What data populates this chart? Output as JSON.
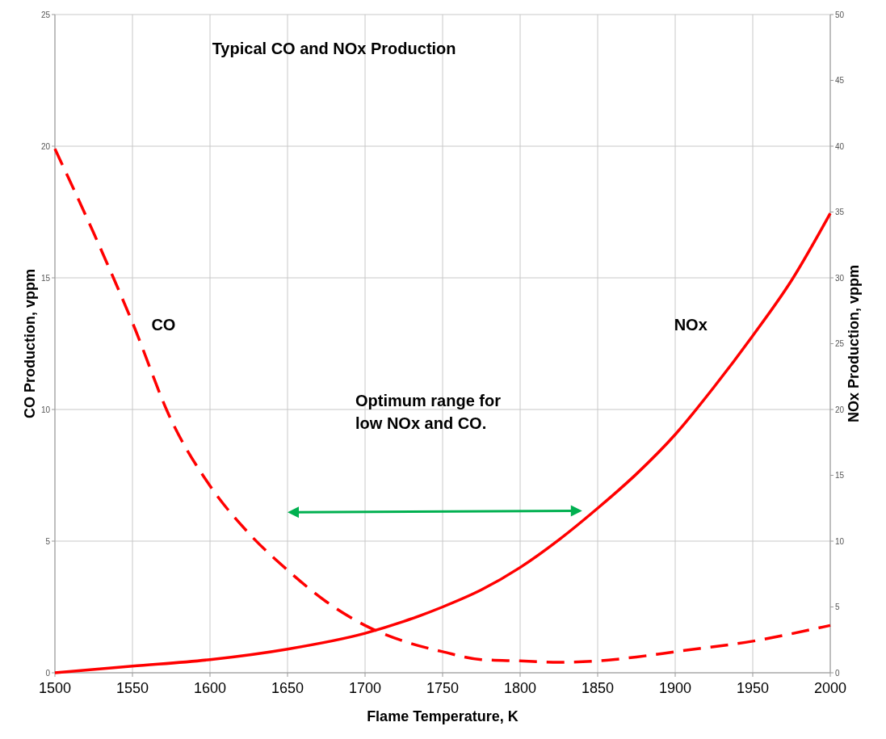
{
  "chart_data": {
    "type": "line",
    "title": "Typical CO and NOx Production",
    "xlabel": "Flame Temperature, K",
    "ylabel": "CO Production, vppm",
    "y2label": "NOx Production, vppm",
    "annotations": [
      "Optimum range for low NOx and CO."
    ],
    "xlim": [
      1500,
      2000
    ],
    "xticks": [
      1500,
      1550,
      1600,
      1650,
      1700,
      1750,
      1800,
      1850,
      1900,
      1950,
      2000
    ],
    "ylim": [
      0,
      25
    ],
    "yticks": [
      0,
      5,
      10,
      15,
      20,
      25
    ],
    "y2lim": [
      0,
      50
    ],
    "y2ticks": [
      0,
      5,
      10,
      15,
      20,
      25,
      30,
      35,
      40,
      45,
      50
    ],
    "grid": true,
    "legend": false,
    "series": [
      {
        "name": "CO",
        "color": "#ff0000",
        "line_style": "dashed",
        "x": [
          1500,
          1525,
          1550,
          1575,
          1600,
          1625,
          1650,
          1675,
          1700,
          1725,
          1750,
          1775,
          1800,
          1825,
          1850,
          1875,
          1900,
          1950,
          2000
        ],
        "values": [
          19.9,
          16.7,
          13.3,
          9.6,
          7.1,
          5.3,
          3.9,
          2.7,
          1.8,
          1.2,
          0.8,
          0.5,
          0.45,
          0.4,
          0.45,
          0.6,
          0.8,
          1.2,
          1.8
        ]
      },
      {
        "name": "NOx",
        "color": "#ff0000",
        "line_style": "solid",
        "axis": "y2",
        "x": [
          1500,
          1550,
          1600,
          1650,
          1700,
          1725,
          1750,
          1775,
          1800,
          1825,
          1850,
          1875,
          1900,
          1925,
          1950,
          1975,
          2000
        ],
        "values": [
          0,
          0.5,
          1.0,
          1.8,
          3.0,
          3.9,
          5.0,
          6.3,
          8.0,
          10.1,
          12.5,
          15.1,
          18.1,
          21.7,
          25.6,
          29.8,
          34.9
        ]
      }
    ]
  }
}
